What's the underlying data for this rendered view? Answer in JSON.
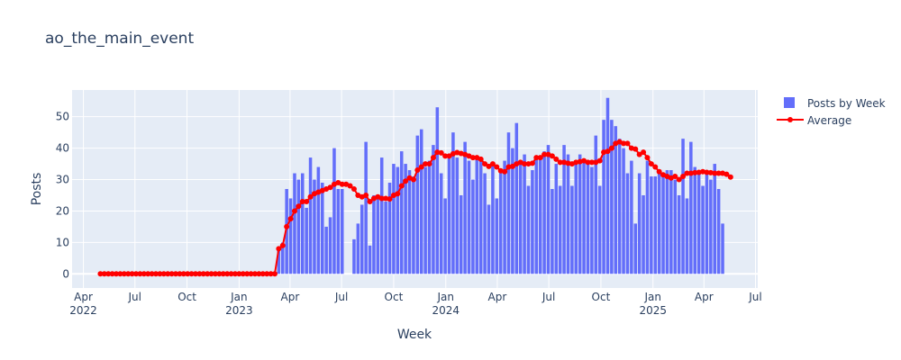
{
  "title": "ao_the_main_event",
  "chart_data": {
    "type": "bar",
    "title": "ao_the_main_event",
    "xlabel": "Week",
    "ylabel": "Posts",
    "x_tick_labels": [
      {
        "date": "2022-04-01",
        "line1": "Apr",
        "line2": "2022"
      },
      {
        "date": "2022-07-01",
        "line1": "Jul",
        "line2": ""
      },
      {
        "date": "2022-10-01",
        "line1": "Oct",
        "line2": ""
      },
      {
        "date": "2023-01-01",
        "line1": "Jan",
        "line2": "2023"
      },
      {
        "date": "2023-04-01",
        "line1": "Apr",
        "line2": ""
      },
      {
        "date": "2023-07-01",
        "line1": "Jul",
        "line2": ""
      },
      {
        "date": "2023-10-01",
        "line1": "Oct",
        "line2": ""
      },
      {
        "date": "2024-01-01",
        "line1": "Jan",
        "line2": "2024"
      },
      {
        "date": "2024-04-01",
        "line1": "Apr",
        "line2": ""
      },
      {
        "date": "2024-07-01",
        "line1": "Jul",
        "line2": ""
      },
      {
        "date": "2024-10-01",
        "line1": "Oct",
        "line2": ""
      },
      {
        "date": "2025-01-01",
        "line1": "Jan",
        "line2": "2025"
      },
      {
        "date": "2025-04-01",
        "line1": "Apr",
        "line2": ""
      },
      {
        "date": "2025-07-01",
        "line1": "Jul",
        "line2": ""
      }
    ],
    "y_ticks": [
      0,
      10,
      20,
      30,
      40,
      50
    ],
    "xlim": [
      "2022-03-12",
      "2025-07-05"
    ],
    "ylim": [
      -4.5,
      58.5
    ],
    "grid": true,
    "legend": {
      "placement": "top-right",
      "bar_label": "Posts by Week",
      "line_label": "Average"
    },
    "colors": {
      "bar": "#636efa",
      "line": "#ff0000",
      "plot_bg": "#e5ecf6",
      "grid": "#ffffff"
    },
    "start_week": "2022-05-01",
    "series": [
      {
        "name": "Posts by Week",
        "type": "bar",
        "values": [
          0,
          0,
          0,
          0,
          0,
          0,
          0,
          0,
          0,
          0,
          0,
          0,
          0,
          0,
          0,
          0,
          0,
          0,
          0,
          0,
          0,
          0,
          0,
          0,
          0,
          0,
          0,
          0,
          0,
          0,
          0,
          0,
          0,
          0,
          0,
          0,
          0,
          0,
          0,
          0,
          0,
          0,
          0,
          0,
          0,
          8,
          10,
          27,
          24,
          32,
          30,
          32,
          21,
          37,
          30,
          34,
          29,
          15,
          18,
          40,
          27,
          27,
          0,
          0,
          11,
          16,
          22,
          42,
          9,
          25,
          25,
          37,
          23,
          29,
          35,
          34,
          39,
          35,
          33,
          31,
          44,
          46,
          34,
          36,
          41,
          53,
          32,
          24,
          37,
          45,
          37,
          25,
          42,
          36,
          30,
          37,
          37,
          32,
          22,
          35,
          24,
          33,
          36,
          45,
          40,
          48,
          36,
          38,
          28,
          33,
          37,
          37,
          39,
          41,
          27,
          35,
          28,
          41,
          38,
          28,
          36,
          38,
          36,
          36,
          34,
          44,
          28,
          49,
          56,
          49,
          47,
          43,
          40,
          32,
          36,
          16,
          32,
          25,
          36,
          31,
          31,
          33,
          31,
          33,
          33,
          30,
          25,
          43,
          24,
          42,
          34,
          32,
          28,
          33,
          30,
          35,
          27,
          16
        ]
      },
      {
        "name": "Average",
        "type": "line",
        "values": [
          0,
          0,
          0,
          0,
          0,
          0,
          0,
          0,
          0,
          0,
          0,
          0,
          0,
          0,
          0,
          0,
          0,
          0,
          0,
          0,
          0,
          0,
          0,
          0,
          0,
          0,
          0,
          0,
          0,
          0,
          0,
          0,
          0,
          0,
          0,
          0,
          0,
          0,
          0,
          0,
          0,
          0,
          0,
          0,
          0,
          8,
          9,
          15,
          17.5,
          20,
          21.5,
          23,
          23,
          24.5,
          25.5,
          26,
          26.5,
          27,
          27.5,
          28.5,
          29,
          28.5,
          28.5,
          28,
          27,
          25,
          24.5,
          25,
          23,
          24,
          24.5,
          24,
          24,
          23.8,
          25,
          25.5,
          28,
          29.5,
          30.5,
          30,
          33,
          34,
          35,
          35,
          37,
          38.7,
          38.5,
          37.5,
          37.5,
          38.2,
          38.6,
          38.3,
          38,
          37.5,
          37,
          37,
          36.5,
          35,
          34.2,
          35,
          34,
          32.8,
          32.5,
          34,
          34.2,
          35,
          35.5,
          35,
          35,
          35.2,
          37,
          37,
          38,
          38,
          37.5,
          36.5,
          35.5,
          35.5,
          35.2,
          35,
          35.5,
          35.7,
          36,
          35.5,
          35.5,
          35.5,
          36,
          38.7,
          39,
          40,
          41.5,
          42,
          41.5,
          41.5,
          40,
          39.7,
          38,
          38.7,
          37,
          35,
          34,
          32.5,
          31.5,
          31,
          30.5,
          31,
          30,
          31,
          32,
          32,
          32.2,
          32.3,
          32.5,
          32.3,
          32.2,
          32,
          32,
          32,
          31.7,
          30.8
        ]
      }
    ]
  }
}
